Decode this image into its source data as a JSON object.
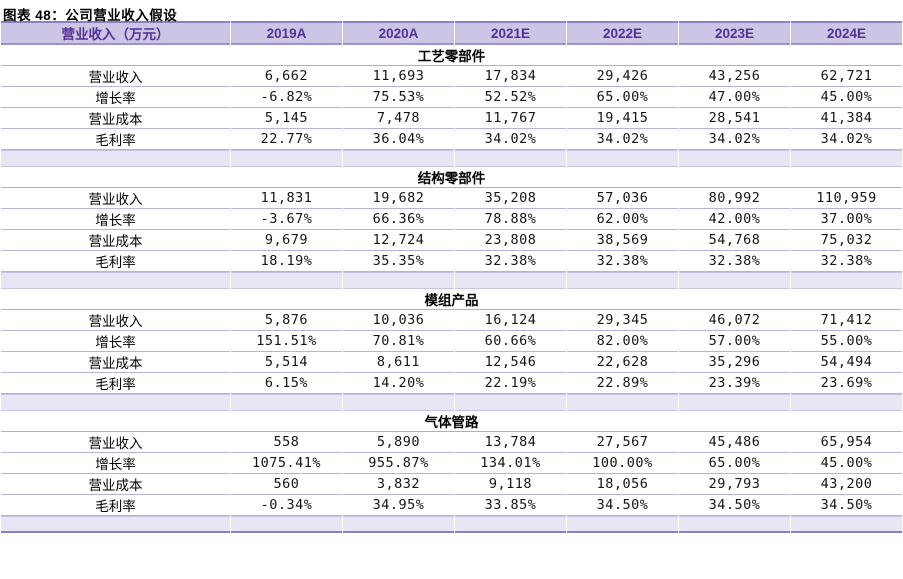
{
  "figure": {
    "title": "图表 48：公司营业收入假设"
  },
  "colors": {
    "header_bg": "#cdc5e6",
    "header_text": "#533192",
    "band_bg": "#e9e6f4",
    "row_line": "#b9b1db",
    "strong_line": "#8b7fc0"
  },
  "table": {
    "header": {
      "label": "营业收入（万元）",
      "years": [
        "2019A",
        "2020A",
        "2021E",
        "2022E",
        "2023E",
        "2024E"
      ]
    },
    "sections": [
      {
        "name": "工艺零部件",
        "rows": [
          {
            "label": "营业收入",
            "values": [
              "6,662",
              "11,693",
              "17,834",
              "29,426",
              "43,256",
              "62,721"
            ]
          },
          {
            "label": "增长率",
            "values": [
              "-6.82%",
              "75.53%",
              "52.52%",
              "65.00%",
              "47.00%",
              "45.00%"
            ]
          },
          {
            "label": "营业成本",
            "values": [
              "5,145",
              "7,478",
              "11,767",
              "19,415",
              "28,541",
              "41,384"
            ]
          },
          {
            "label": "毛利率",
            "values": [
              "22.77%",
              "36.04%",
              "34.02%",
              "34.02%",
              "34.02%",
              "34.02%"
            ]
          }
        ]
      },
      {
        "name": "结构零部件",
        "rows": [
          {
            "label": "营业收入",
            "values": [
              "11,831",
              "19,682",
              "35,208",
              "57,036",
              "80,992",
              "110,959"
            ]
          },
          {
            "label": "增长率",
            "values": [
              "-3.67%",
              "66.36%",
              "78.88%",
              "62.00%",
              "42.00%",
              "37.00%"
            ]
          },
          {
            "label": "营业成本",
            "values": [
              "9,679",
              "12,724",
              "23,808",
              "38,569",
              "54,768",
              "75,032"
            ]
          },
          {
            "label": "毛利率",
            "values": [
              "18.19%",
              "35.35%",
              "32.38%",
              "32.38%",
              "32.38%",
              "32.38%"
            ]
          }
        ]
      },
      {
        "name": "模组产品",
        "rows": [
          {
            "label": "营业收入",
            "values": [
              "5,876",
              "10,036",
              "16,124",
              "29,345",
              "46,072",
              "71,412"
            ]
          },
          {
            "label": "增长率",
            "values": [
              "151.51%",
              "70.81%",
              "60.66%",
              "82.00%",
              "57.00%",
              "55.00%"
            ]
          },
          {
            "label": "营业成本",
            "values": [
              "5,514",
              "8,611",
              "12,546",
              "22,628",
              "35,296",
              "54,494"
            ]
          },
          {
            "label": "毛利率",
            "values": [
              "6.15%",
              "14.20%",
              "22.19%",
              "22.89%",
              "23.39%",
              "23.69%"
            ]
          }
        ]
      },
      {
        "name": "气体管路",
        "rows": [
          {
            "label": "营业收入",
            "values": [
              "558",
              "5,890",
              "13,784",
              "27,567",
              "45,486",
              "65,954"
            ]
          },
          {
            "label": "增长率",
            "values": [
              "1075.41%",
              "955.87%",
              "134.01%",
              "100.00%",
              "65.00%",
              "45.00%"
            ]
          },
          {
            "label": "营业成本",
            "values": [
              "560",
              "3,832",
              "9,118",
              "18,056",
              "29,793",
              "43,200"
            ]
          },
          {
            "label": "毛利率",
            "values": [
              "-0.34%",
              "34.95%",
              "33.85%",
              "34.50%",
              "34.50%",
              "34.50%"
            ]
          }
        ]
      }
    ]
  }
}
